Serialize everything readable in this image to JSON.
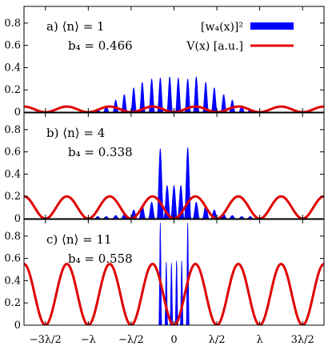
{
  "chart_data": {
    "type": "area",
    "x_ticks": [
      "−3λ/2",
      "−λ",
      "−λ/2",
      "0",
      "λ/2",
      "λ",
      "3λ/2"
    ],
    "x_tick_values": [
      -1.5,
      -1.0,
      -0.5,
      0,
      0.5,
      1.0,
      1.5
    ],
    "xlim": [
      -1.75,
      1.75
    ],
    "legend": {
      "placement": "top-right",
      "entries": [
        {
          "label": "[w₄(x)]²",
          "color": "#0000ff",
          "kind": "filled"
        },
        {
          "label": "V(x) [a.u.]",
          "color": "#e00000",
          "kind": "line"
        }
      ]
    },
    "panels": [
      {
        "label": "a) ⟨n⟩ = 1",
        "b4_label": "b₄ = 0.466",
        "ylim": [
          0,
          0.95
        ],
        "y_ticks": [
          0,
          0.2,
          0.4,
          0.6,
          0.8
        ],
        "y_tick_labels": [
          "0",
          "0.2",
          "0.4",
          "0.6",
          "0.8"
        ],
        "potential": {
          "amplitude": 0.05,
          "period": 0.5
        },
        "density": {
          "peak_x": [
            -0.89,
            -0.79,
            -0.68,
            -0.58,
            -0.47,
            -0.37,
            -0.26,
            -0.16,
            -0.05,
            0.05,
            0.16,
            0.26,
            0.37,
            0.47,
            0.58,
            0.68,
            0.79,
            0.89
          ],
          "peak_y": [
            0.03,
            0.06,
            0.11,
            0.16,
            0.22,
            0.27,
            0.3,
            0.31,
            0.32,
            0.31,
            0.3,
            0.32,
            0.27,
            0.22,
            0.16,
            0.11,
            0.06,
            0.03
          ],
          "peak_width": 0.035
        }
      },
      {
        "label": "b) ⟨n⟩ = 4",
        "b4_label": "b₄ = 0.338",
        "ylim": [
          0,
          0.95
        ],
        "y_ticks": [
          0,
          0.2,
          0.4,
          0.6,
          0.8
        ],
        "y_tick_labels": [
          "0",
          "0.2",
          "0.4",
          "0.6",
          "0.8"
        ],
        "potential": {
          "amplitude": 0.2,
          "period": 0.5
        },
        "density": {
          "peak_x": [
            -1.0,
            -0.89,
            -0.79,
            -0.68,
            -0.58,
            -0.47,
            -0.37,
            -0.26,
            -0.16,
            -0.08,
            0.0,
            0.08,
            0.16,
            0.26,
            0.37,
            0.47,
            0.58,
            0.68,
            0.79,
            0.89,
            1.0
          ],
          "peak_y": [
            0.01,
            0.02,
            0.02,
            0.03,
            0.04,
            0.08,
            0.12,
            0.15,
            0.63,
            0.3,
            0.3,
            0.3,
            0.64,
            0.15,
            0.12,
            0.08,
            0.04,
            0.03,
            0.02,
            0.02,
            0.01
          ],
          "peak_width": 0.04
        }
      },
      {
        "label": "c) ⟨n⟩ = 11",
        "b4_label": "b₄ = 0.558",
        "ylim": [
          0,
          0.95
        ],
        "y_ticks": [
          0,
          0.2,
          0.4,
          0.6,
          0.8
        ],
        "y_tick_labels": [
          "0",
          "0.2",
          "0.4",
          "0.6",
          "0.8"
        ],
        "potential": {
          "amplitude": 0.55,
          "period": 0.5
        },
        "density": {
          "peak_x": [
            -0.16,
            -0.09,
            -0.03,
            0.03,
            0.09,
            0.16
          ],
          "peak_y": [
            0.92,
            0.57,
            0.56,
            0.58,
            0.58,
            0.92
          ],
          "peak_width": 0.018
        }
      }
    ]
  }
}
